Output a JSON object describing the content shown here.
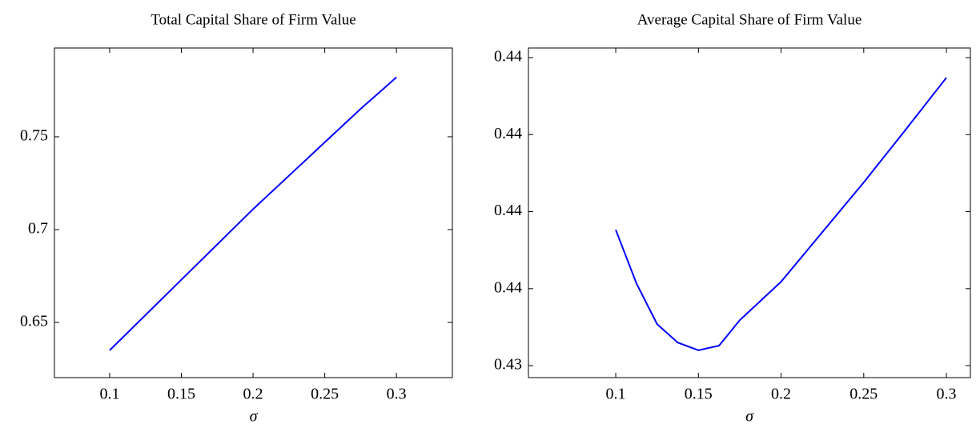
{
  "chart_data": [
    {
      "type": "line",
      "title": "Total Capital Share of Firm Value",
      "xlabel": "σ",
      "x": [
        0.1,
        0.125,
        0.15,
        0.175,
        0.2,
        0.225,
        0.25,
        0.275,
        0.3
      ],
      "series": [
        {
          "color": "#0000ff",
          "values": [
            0.635,
            0.654,
            0.673,
            0.692,
            0.711,
            0.729,
            0.747,
            0.765,
            0.782
          ]
        }
      ],
      "xlim": [
        0.0615,
        0.339
      ],
      "ylim": [
        0.6203,
        0.7978
      ],
      "xticks": [
        0.1,
        0.15,
        0.2,
        0.25,
        0.3
      ],
      "yticks": [
        0.65,
        0.7,
        0.75
      ]
    },
    {
      "type": "line",
      "title": "Average Capital Share of Firm Value",
      "xlabel": "σ",
      "x": [
        0.1,
        0.1125,
        0.125,
        0.1375,
        0.15,
        0.1625,
        0.175,
        0.2,
        0.225,
        0.25,
        0.275,
        0.3
      ],
      "series": [
        {
          "color": "#0000ff",
          "values": [
            0.43753,
            0.43614,
            0.43508,
            0.4346,
            0.4344,
            0.43452,
            0.43518,
            0.43618,
            0.43747,
            0.43876,
            0.44011,
            0.44148
          ]
        }
      ],
      "xlim": [
        0.0472,
        0.3145
      ],
      "ylim": [
        0.43369,
        0.44225
      ],
      "xticks": [
        0.1,
        0.15,
        0.2,
        0.25,
        0.3
      ],
      "yticks": [
        {
          "value": 0.434,
          "label": "0.43"
        },
        {
          "value": 0.436,
          "label": "0.44"
        },
        {
          "value": 0.438,
          "label": "0.44"
        },
        {
          "value": 0.44,
          "label": "0.44"
        },
        {
          "value": 0.442,
          "label": "0.44"
        }
      ]
    }
  ]
}
